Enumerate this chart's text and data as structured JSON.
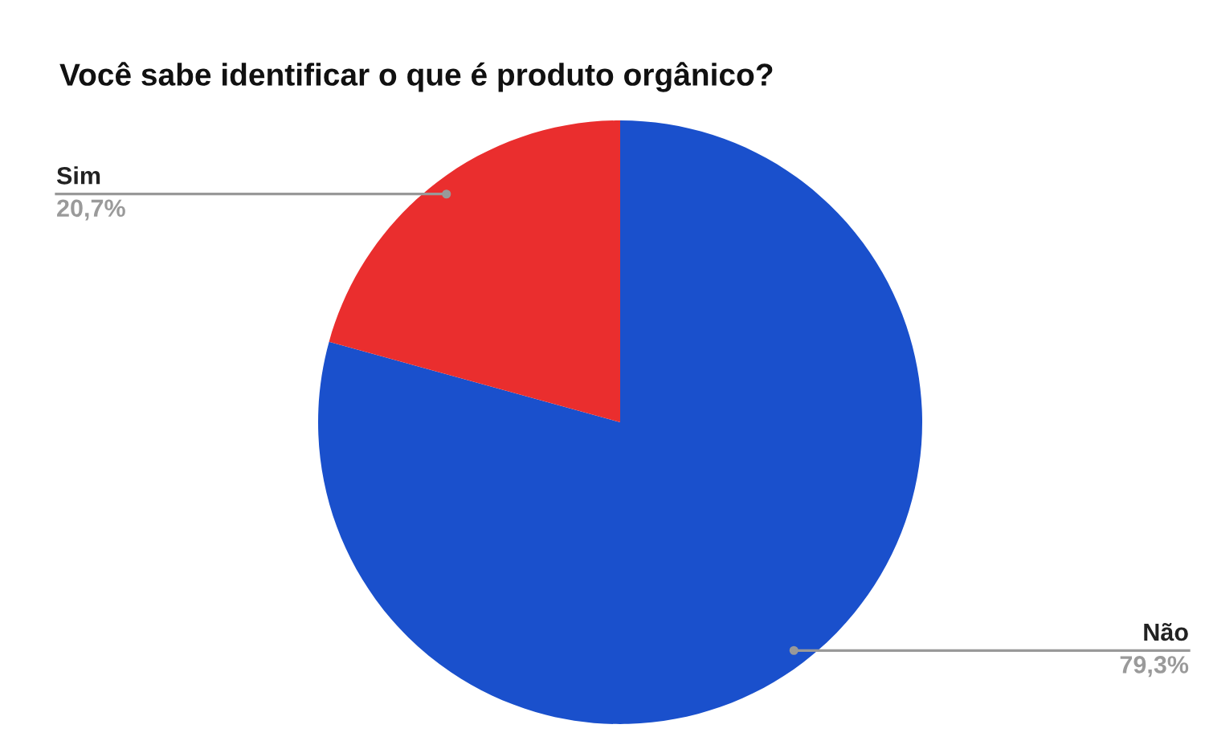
{
  "chart_data": {
    "type": "pie",
    "title": "Você sabe identificar o que é produto orgânico?",
    "categories": [
      "Não",
      "Sim"
    ],
    "values": [
      79.3,
      20.7
    ],
    "colors": [
      "#1a50cc",
      "#ea2e2e"
    ],
    "value_labels": [
      "79,3%",
      "20,7%"
    ],
    "legend": false
  }
}
